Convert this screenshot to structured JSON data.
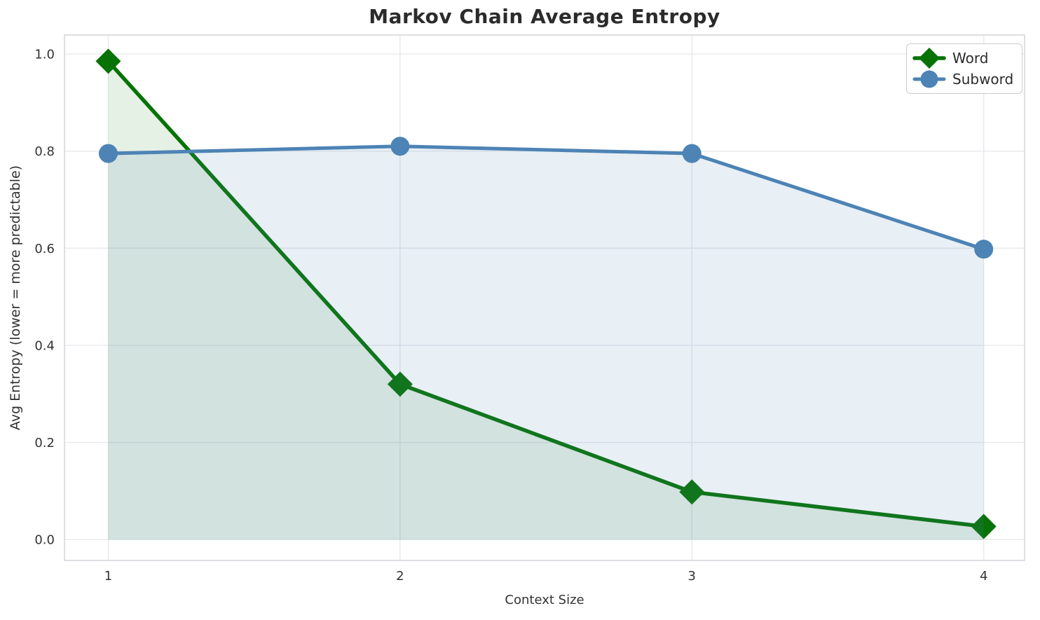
{
  "title": "Markov Chain Average Entropy",
  "chart_data": {
    "type": "line",
    "title": "Markov Chain Average Entropy",
    "xlabel": "Context Size",
    "ylabel": "Avg Entropy (lower = more predictable)",
    "x": [
      1,
      2,
      3,
      4
    ],
    "x_tick_labels": [
      "1",
      "2",
      "3",
      "4"
    ],
    "y_ticks": [
      0.0,
      0.2,
      0.4,
      0.6,
      0.8,
      1.0
    ],
    "y_tick_labels": [
      "0.0",
      "0.2",
      "0.4",
      "0.6",
      "0.8",
      "1.0"
    ],
    "xlim": [
      0.85,
      4.14
    ],
    "ylim": [
      -0.043,
      1.039
    ],
    "grid": true,
    "legend_position": "upper right",
    "series": [
      {
        "name": "Word",
        "marker": "diamond",
        "color": "#077307",
        "fill": true,
        "fill_opacity": 0.1,
        "values": [
          0.985,
          0.32,
          0.098,
          0.027
        ]
      },
      {
        "name": "Subword",
        "marker": "circle",
        "color": "#4d83b5",
        "fill": true,
        "fill_opacity": 0.13,
        "values": [
          0.795,
          0.81,
          0.795,
          0.598
        ]
      }
    ]
  },
  "style": {
    "grid_color": "#e9e9ed",
    "spine_color": "#d4d4da",
    "tick_label_color": "#333333",
    "title_color": "#2b2b2b",
    "background": "#ffffff"
  }
}
